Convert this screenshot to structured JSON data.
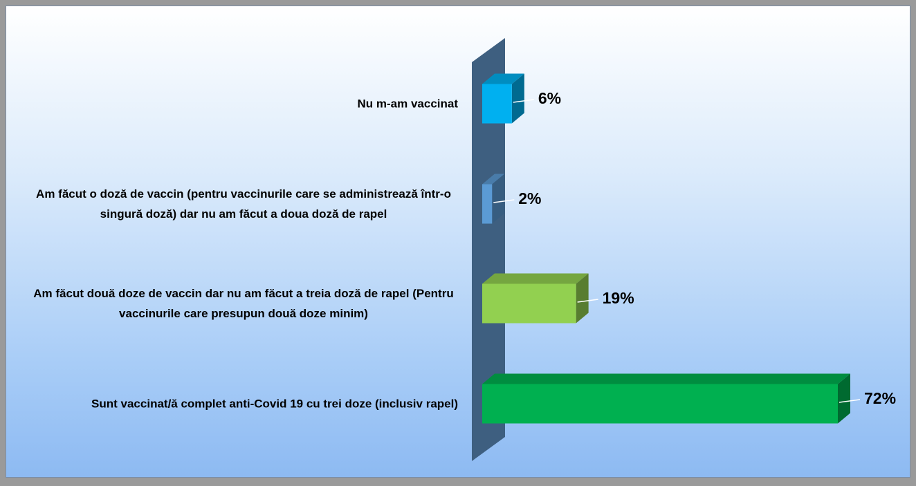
{
  "chart_data": {
    "type": "bar3d_horizontal",
    "categories": [
      "Nu m-am vaccinat",
      "Am făcut o doză de vaccin (pentru vaccinurile care se administrează într-o singură doză) dar nu am făcut a doua doză de rapel",
      "Am făcut două doze de vaccin dar nu am făcut a treia doză de rapel (Pentru vaccinurile care presupun două doze minim)",
      "Sunt vaccinat/ă complet anti-Covid 19 cu trei doze (inclusiv rapel)"
    ],
    "values": [
      6,
      2,
      19,
      72
    ],
    "value_labels": [
      "6%",
      "2%",
      "19%",
      "72%"
    ],
    "colors": [
      "#00b0f0",
      "#5b9bd5",
      "#92d050",
      "#00b050"
    ]
  }
}
